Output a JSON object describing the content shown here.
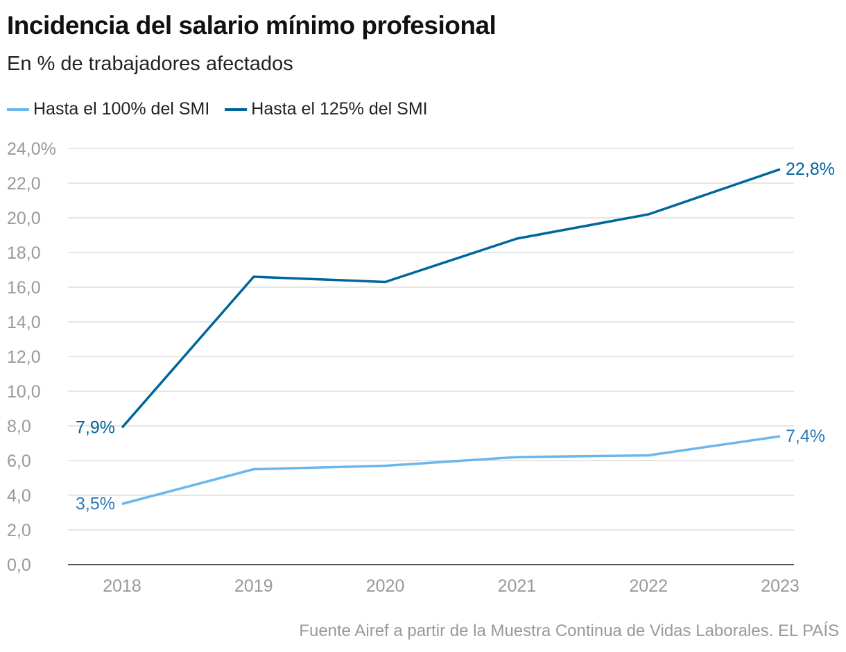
{
  "chart_data": {
    "type": "line",
    "title": "Incidencia del salario mínimo profesional",
    "subtitle": "En % de trabajadores afectados",
    "categories": [
      "2018",
      "2019",
      "2020",
      "2021",
      "2022",
      "2023"
    ],
    "series": [
      {
        "name": "Hasta el 100% del SMI",
        "color": "#6cb6ee",
        "label_color": "#2a7ab8",
        "values": [
          3.5,
          5.5,
          5.7,
          6.2,
          6.3,
          7.4
        ],
        "labels": {
          "first": "3,5%",
          "last": "7,4%"
        }
      },
      {
        "name": "Hasta el 125% del SMI",
        "color": "#006699",
        "label_color": "#006699",
        "values": [
          7.9,
          16.6,
          16.3,
          18.8,
          20.2,
          22.8
        ],
        "labels": {
          "first": "7,9%",
          "last": "22,8%"
        }
      }
    ],
    "ylim": [
      0,
      24
    ],
    "yticks": [
      "0,0",
      "2,0",
      "4,0",
      "6,0",
      "8,0",
      "10,0",
      "12,0",
      "14,0",
      "16,0",
      "18,0",
      "20,0",
      "22,0",
      "24,0%"
    ],
    "grid": true,
    "legend": "top-left",
    "source": "Fuente Airef a partir de la Muestra Continua de Vidas Laborales. EL PAÍS"
  }
}
